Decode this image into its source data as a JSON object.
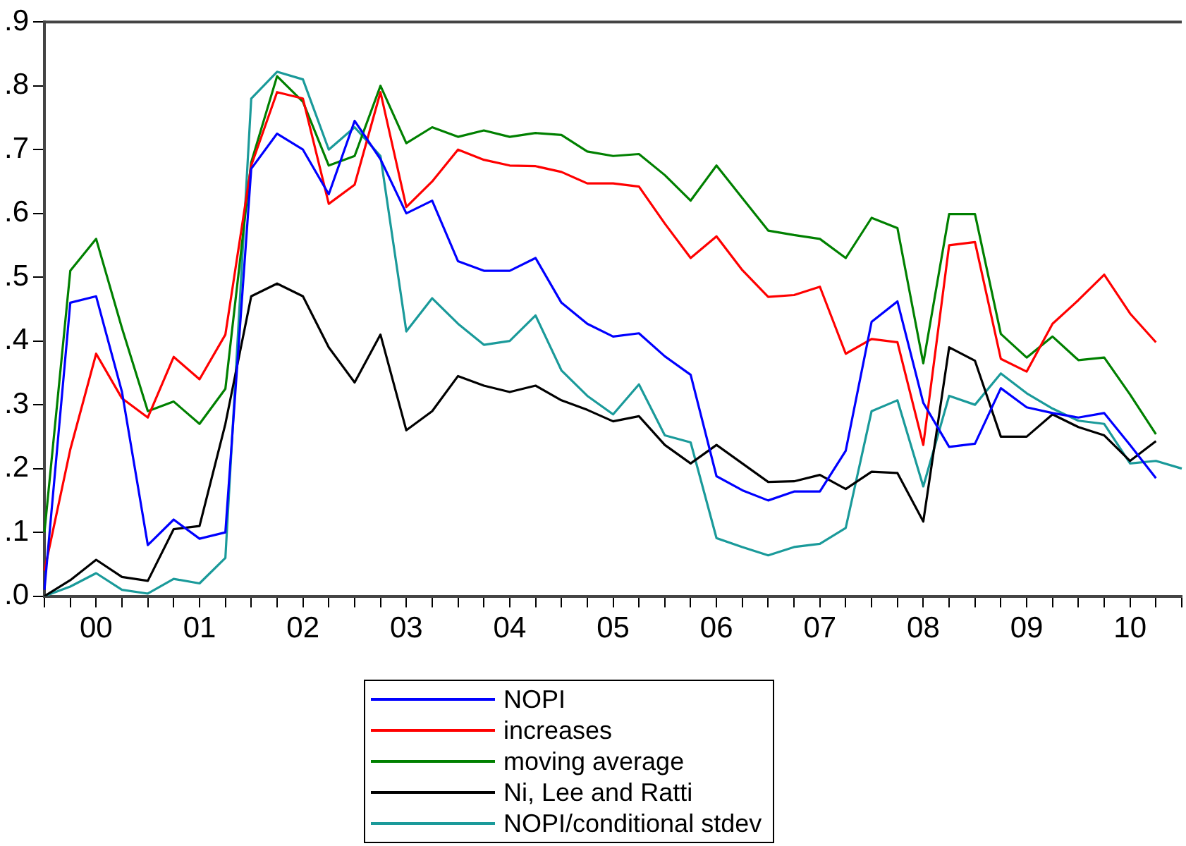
{
  "chart_data": {
    "type": "line",
    "grid": false,
    "legend": "bottom",
    "marker": "none",
    "line_style": "solid",
    "categories": [
      null,
      null,
      "00",
      null,
      null,
      null,
      "01",
      null,
      null,
      null,
      "02",
      null,
      null,
      null,
      "03",
      null,
      null,
      null,
      "04",
      null,
      null,
      null,
      "05",
      null,
      null,
      null,
      "06",
      null,
      null,
      null,
      "07",
      null,
      null,
      null,
      "08",
      null,
      null,
      null,
      "09",
      null,
      null,
      null,
      "10",
      null,
      null
    ],
    "ylim": [
      0,
      0.9
    ],
    "yticks": [
      {
        "value": 0,
        "label": ".0"
      },
      {
        "value": 0.1,
        "label": ".1"
      },
      {
        "value": 0.2,
        "label": ".2"
      },
      {
        "value": 0.3,
        "label": ".3"
      },
      {
        "value": 0.4,
        "label": ".4"
      },
      {
        "value": 0.5,
        "label": ".5"
      },
      {
        "value": 0.6,
        "label": ".6"
      },
      {
        "value": 0.7,
        "label": ".7"
      },
      {
        "value": 0.8,
        "label": ".8"
      },
      {
        "value": 0.9,
        "label": ".9"
      }
    ],
    "series": [
      {
        "name": "NOPI",
        "color": "#0000ff",
        "values": [
          0.01,
          0.46,
          0.47,
          0.32,
          0.08,
          0.12,
          0.09,
          0.1,
          0.67,
          0.725,
          0.7,
          0.63,
          0.745,
          0.685,
          0.6,
          0.62,
          0.525,
          0.51,
          0.51,
          0.53,
          0.46,
          0.427,
          0.407,
          0.412,
          0.376,
          0.347,
          0.188,
          0.166,
          0.15,
          0.164,
          0.164,
          0.228,
          0.43,
          0.462,
          0.303,
          0.234,
          0.239,
          0.326,
          0.296,
          0.287,
          0.28,
          0.287,
          0.237,
          0.185,
          null
        ]
      },
      {
        "name": "increases",
        "color": "#ff0000",
        "values": [
          0.04,
          0.23,
          0.38,
          0.31,
          0.28,
          0.375,
          0.34,
          0.41,
          0.675,
          0.79,
          0.78,
          0.615,
          0.645,
          0.79,
          0.61,
          0.65,
          0.7,
          0.684,
          0.675,
          0.674,
          0.665,
          0.647,
          0.647,
          0.642,
          0.584,
          0.53,
          0.564,
          0.511,
          0.469,
          0.472,
          0.485,
          0.38,
          0.403,
          0.398,
          0.237,
          0.55,
          0.555,
          0.372,
          0.352,
          0.427,
          0.464,
          0.504,
          0.443,
          0.398,
          null
        ]
      },
      {
        "name": "moving average",
        "color": "#008000",
        "values": [
          0.1,
          0.51,
          0.56,
          0.42,
          0.29,
          0.305,
          0.27,
          0.325,
          0.68,
          0.815,
          0.775,
          0.675,
          0.69,
          0.8,
          0.71,
          0.735,
          0.72,
          0.73,
          0.72,
          0.726,
          0.723,
          0.697,
          0.69,
          0.693,
          0.66,
          0.62,
          0.675,
          0.624,
          0.573,
          0.566,
          0.56,
          0.53,
          0.593,
          0.577,
          0.365,
          0.599,
          0.599,
          0.411,
          0.374,
          0.407,
          0.37,
          0.374,
          0.316,
          0.254,
          null
        ]
      },
      {
        "name": "Ni, Lee and Ratti",
        "color": "#000000",
        "values": [
          0,
          0.025,
          0.057,
          0.03,
          0.024,
          0.105,
          0.11,
          0.27,
          0.47,
          0.49,
          0.47,
          0.39,
          0.335,
          0.41,
          0.26,
          0.29,
          0.345,
          0.33,
          0.32,
          0.33,
          0.307,
          0.292,
          0.274,
          0.282,
          0.237,
          0.208,
          0.237,
          0.208,
          0.179,
          0.18,
          0.19,
          0.168,
          0.195,
          0.193,
          0.117,
          0.39,
          0.369,
          0.25,
          0.25,
          0.285,
          0.265,
          0.252,
          0.212,
          0.243,
          null
        ]
      },
      {
        "name": "NOPI/conditional stdev",
        "color": "#1a9a9a",
        "values": [
          0,
          0.015,
          0.036,
          0.01,
          0.004,
          0.027,
          0.02,
          0.06,
          0.78,
          0.822,
          0.81,
          0.7,
          0.735,
          0.69,
          0.415,
          0.467,
          0.427,
          0.394,
          0.4,
          0.44,
          0.354,
          0.314,
          0.285,
          0.332,
          0.252,
          0.241,
          0.091,
          0.077,
          0.064,
          0.077,
          0.082,
          0.107,
          0.29,
          0.307,
          0.172,
          0.314,
          0.3,
          0.349,
          0.318,
          0.294,
          0.275,
          0.27,
          0.208,
          0.212,
          0.2
        ]
      }
    ]
  }
}
